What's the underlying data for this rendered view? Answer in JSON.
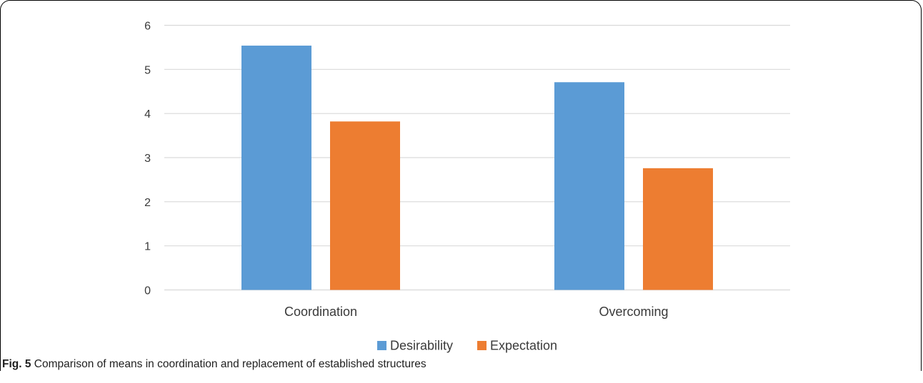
{
  "caption": {
    "label": "Fig. 5",
    "text": " Comparison of means in coordination and replacement of established structures"
  },
  "chart_data": {
    "type": "bar",
    "title": "",
    "xlabel": "",
    "ylabel": "",
    "categories": [
      "Coordination",
      "Overcoming"
    ],
    "series": [
      {
        "name": "Desirability",
        "color": "#5b9bd5",
        "values": [
          5.54,
          4.71
        ]
      },
      {
        "name": "Expectation",
        "color": "#ed7d31",
        "values": [
          3.82,
          2.76
        ]
      }
    ],
    "ylim": [
      0,
      6
    ],
    "yticks": [
      "0",
      "1",
      "2",
      "3",
      "4",
      "5",
      "6"
    ],
    "grid": true,
    "legend": "bottom-center",
    "gridline_color": "#d9d9d9"
  }
}
